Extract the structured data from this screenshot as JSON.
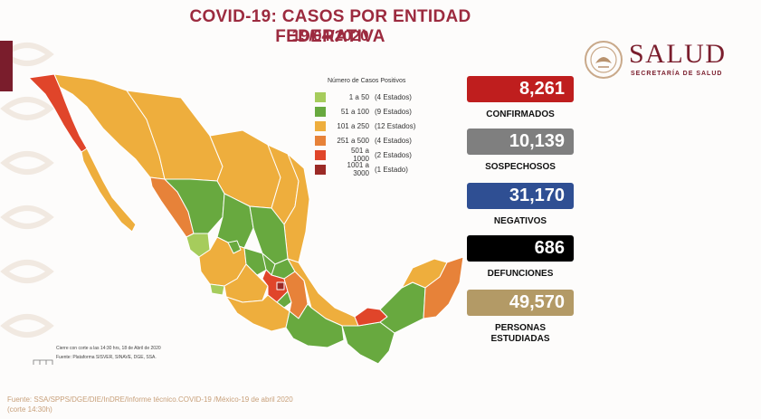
{
  "header": {
    "title": "COVID-19: CASOS POR ENTIDAD FEDERATIVA",
    "date": "19/04/2020"
  },
  "logo": {
    "word": "SALUD",
    "subtitle": "SECRETARÍA DE SALUD"
  },
  "chart_data": {
    "type": "choropleth",
    "title": "COVID-19: CASOS POR ENTIDAD FEDERATIVA",
    "legend_title": "Número de Casos Positivos",
    "legend": [
      {
        "range": "1 a 50",
        "count": "(4 Estados)",
        "color": "#a6cc5c"
      },
      {
        "range": "51 a 100",
        "count": "(9 Estados)",
        "color": "#68a93f"
      },
      {
        "range": "101 a 250",
        "count": "(12 Estados)",
        "color": "#eeae3d"
      },
      {
        "range": "251 a 500",
        "count": "(4 Estados)",
        "color": "#e78239"
      },
      {
        "range": "501 a 1000",
        "count": "(2 Estados)",
        "color": "#e0452a"
      },
      {
        "range": "1001 a 3000",
        "count": "(1 Estado)",
        "color": "#9b2a26"
      }
    ]
  },
  "stats": [
    {
      "value": "8,261",
      "label": "CONFIRMADOS",
      "color": "#bf1e1e"
    },
    {
      "value": "10,139",
      "label": "SOSPECHOSOS",
      "color": "#7f7f7f"
    },
    {
      "value": "31,170",
      "label": "NEGATIVOS",
      "color": "#2f4f93"
    },
    {
      "value": "686",
      "label": "DEFUNCIONES",
      "color": "#000000"
    },
    {
      "value": "49,570",
      "label": "PERSONAS ESTUDIADAS",
      "color": "#b39a66"
    }
  ],
  "notes": {
    "cut": "Cierre con corte a las 14:30 hrs, 18 de Abril de 2020",
    "platform": "Fuente: Plataforma SISVER, SINAVE, DGE, SSA."
  },
  "source": "Fuente: SSA/SPPS/DGE/DIE/InDRE/Informe técnico.COVID-19 /México-19 de abril 2020 (corte 14:30h)"
}
